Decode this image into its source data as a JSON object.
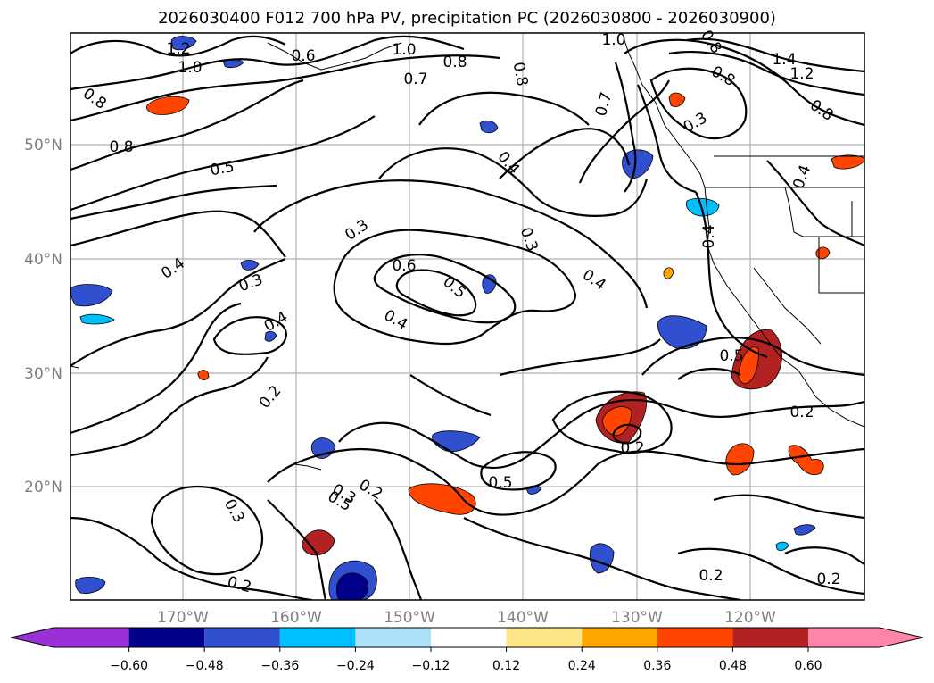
{
  "title": "2026030400 F012 700 hPa PV, precipitation PC (2026030800 - 2026030900)",
  "lat_labels": [
    "50°N",
    "40°N",
    "30°N",
    "20°N"
  ],
  "lon_labels": [
    "170°W",
    "160°W",
    "150°W",
    "140°W",
    "130°W",
    "120°W"
  ],
  "contour_labels": [
    "1.2",
    "1.0",
    "0.6",
    "1.0",
    "0.8",
    "0.7",
    "0.8",
    "1.0",
    "0.8",
    "0.8",
    "0.7",
    "0.8",
    "0.3",
    "1.4",
    "1.2",
    "0.8",
    "0.8",
    "0.5",
    "0.4",
    "0.4",
    "0.3",
    "0.3",
    "0.4",
    "0.4",
    "0.6",
    "0.5",
    "0.3",
    "0.4",
    "0.4",
    "0.4",
    "0.5",
    "0.2",
    "0.2",
    "0.2",
    "0.5",
    "0.3",
    "0.2",
    "0.5",
    "0.2",
    "0.3",
    "0.2",
    "0.2"
  ],
  "colorbar": {
    "ticks": [
      "−0.60",
      "−0.48",
      "−0.36",
      "−0.24",
      "−0.12",
      "0.12",
      "0.24",
      "0.36",
      "0.48",
      "0.60"
    ],
    "colors": [
      "#9b30d6",
      "#00008b",
      "#3050d0",
      "#00bfff",
      "#aee0fa",
      "#ffffff",
      "#fde68a",
      "#ffa500",
      "#ff4500",
      "#b22222",
      "#ff85a8"
    ]
  }
}
